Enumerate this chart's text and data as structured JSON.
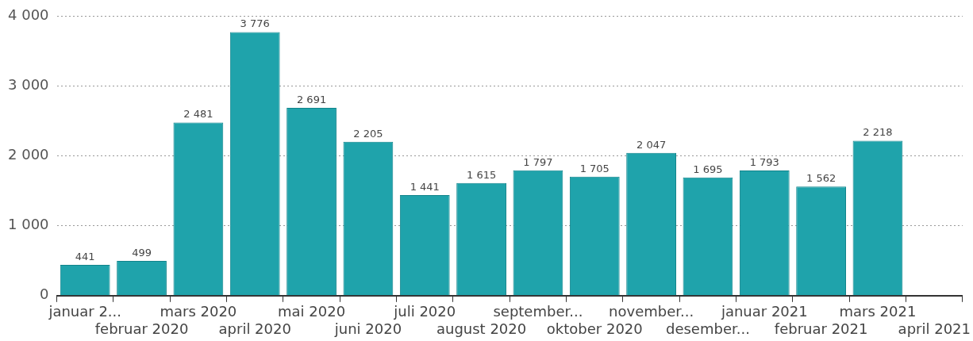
{
  "chart_data": {
    "type": "bar",
    "categories": [
      "januar 2...",
      "februar 2020",
      "mars 2020",
      "april 2020",
      "mai 2020",
      "juni 2020",
      "juli 2020",
      "august 2020",
      "september...",
      "oktober 2020",
      "november...",
      "desember...",
      "januar 2021",
      "februar 2021",
      "mars 2021",
      "april 2021"
    ],
    "values": [
      441,
      499,
      2481,
      3776,
      2691,
      2205,
      1441,
      1615,
      1797,
      1705,
      2047,
      1695,
      1793,
      1562,
      2218,
      null
    ],
    "value_labels": [
      "441",
      "499",
      "2 481",
      "3 776",
      "2 691",
      "2 205",
      "1 441",
      "1 615",
      "1 797",
      "1 705",
      "2 047",
      "1 695",
      "1 793",
      "1 562",
      "2 218",
      null
    ],
    "color": "#1fa3ab",
    "ylim": [
      0,
      4000
    ],
    "yticks": [
      {
        "value": 0,
        "label": "0"
      },
      {
        "value": 1000,
        "label": "1 000"
      },
      {
        "value": 2000,
        "label": "2 000"
      },
      {
        "value": 3000,
        "label": "3 000"
      },
      {
        "value": 4000,
        "label": "4 000"
      }
    ],
    "grid": "y",
    "legend": false
  }
}
